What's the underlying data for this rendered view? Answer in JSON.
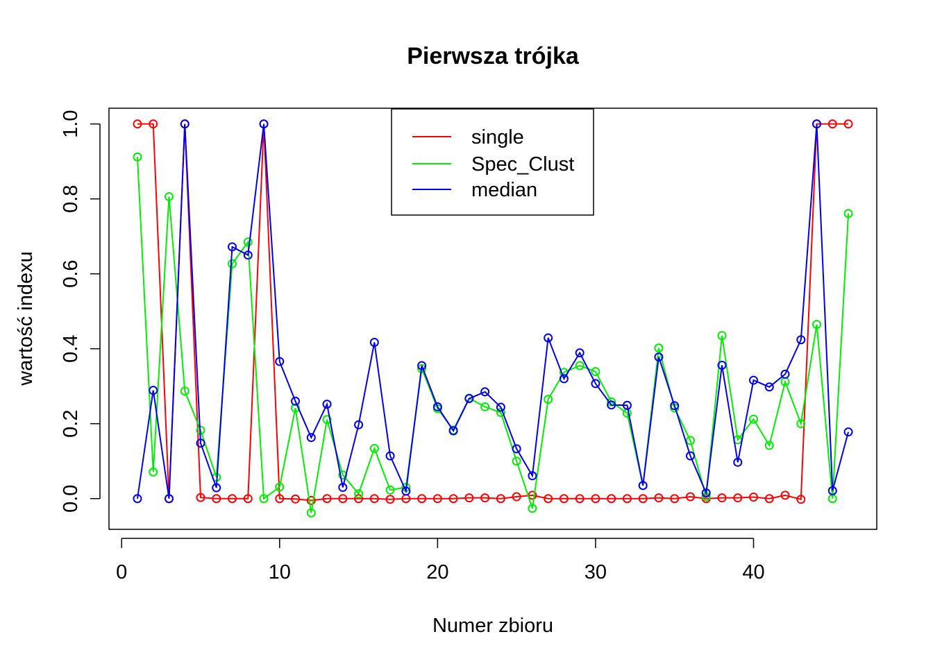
{
  "chart_data": {
    "type": "line",
    "title": "Pierwsza trójka",
    "xlabel": "Numer zbioru",
    "ylabel": "wartość indexu",
    "xlim": [
      -0.8,
      47.8
    ],
    "ylim": [
      -0.082,
      1.042
    ],
    "xticks": [
      0,
      10,
      20,
      30,
      40
    ],
    "xtick_labels": [
      "0",
      "10",
      "20",
      "30",
      "40"
    ],
    "yticks": [
      0.0,
      0.2,
      0.4,
      0.6,
      0.8,
      1.0
    ],
    "ytick_labels": [
      "0.0",
      "0.2",
      "0.4",
      "0.6",
      "0.8",
      "1.0"
    ],
    "legend_position": "top-center",
    "x": [
      1,
      2,
      3,
      4,
      5,
      6,
      7,
      8,
      9,
      10,
      11,
      12,
      13,
      14,
      15,
      16,
      17,
      18,
      19,
      20,
      21,
      22,
      23,
      24,
      25,
      26,
      27,
      28,
      29,
      30,
      31,
      32,
      33,
      34,
      35,
      36,
      37,
      38,
      39,
      40,
      41,
      42,
      43,
      44,
      45,
      46
    ],
    "series": [
      {
        "name": "single",
        "color": "#ff0000",
        "values": [
          1.0,
          1.0,
          0.0,
          1.0,
          0.003,
          0.0,
          0.0,
          0.0,
          1.0,
          0.0,
          -0.001,
          -0.005,
          0.0,
          0.0,
          0.0,
          0.0,
          -0.002,
          0.0,
          0.0,
          0.0,
          0.0,
          0.002,
          0.002,
          0.0,
          0.005,
          0.009,
          0.0,
          0.0,
          0.0,
          0.0,
          0.0,
          0.0,
          0.0,
          0.002,
          0.0,
          0.005,
          0.0,
          0.002,
          0.002,
          0.004,
          0.0,
          0.009,
          -0.002,
          1.0,
          1.0,
          1.0
        ]
      },
      {
        "name": "Spec_Clust",
        "color": "#00ee00",
        "values": [
          0.912,
          0.071,
          0.806,
          0.287,
          0.182,
          0.057,
          0.627,
          0.685,
          0.0,
          0.031,
          0.242,
          -0.038,
          0.211,
          0.063,
          0.013,
          0.134,
          0.023,
          0.03,
          0.347,
          0.24,
          0.183,
          0.268,
          0.245,
          0.23,
          0.1,
          -0.026,
          0.265,
          0.337,
          0.355,
          0.339,
          0.258,
          0.228,
          0.035,
          0.402,
          0.242,
          0.155,
          0.005,
          0.435,
          0.157,
          0.212,
          0.142,
          0.312,
          0.2,
          0.465,
          0.0,
          0.761
        ]
      },
      {
        "name": "median",
        "color": "#0000ee",
        "values": [
          0.0,
          0.289,
          0.0,
          1.0,
          0.148,
          0.029,
          0.672,
          0.65,
          1.0,
          0.366,
          0.26,
          0.163,
          0.252,
          0.03,
          0.197,
          0.417,
          0.114,
          0.02,
          0.355,
          0.245,
          0.181,
          0.267,
          0.285,
          0.244,
          0.133,
          0.061,
          0.429,
          0.32,
          0.389,
          0.307,
          0.25,
          0.249,
          0.035,
          0.378,
          0.248,
          0.114,
          0.015,
          0.356,
          0.097,
          0.316,
          0.298,
          0.332,
          0.424,
          1.0,
          0.021,
          0.178
        ]
      }
    ]
  }
}
